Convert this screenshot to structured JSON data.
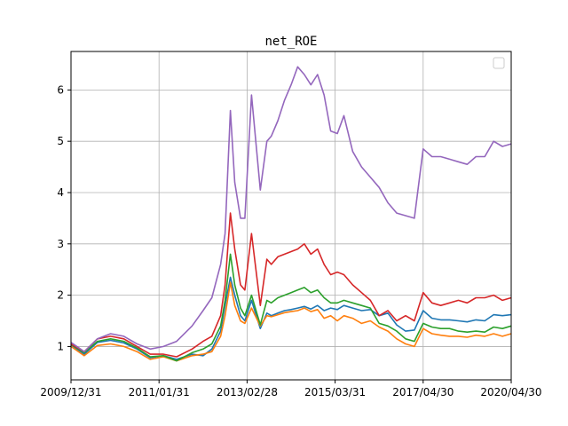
{
  "chart_data": {
    "type": "line",
    "title": "net_ROE",
    "xlabel": "",
    "ylabel": "",
    "grid": true,
    "legend": {
      "position": "top-right",
      "entries": []
    },
    "x_tick_labels": [
      "2009/12/31",
      "2011/01/31",
      "2013/02/28",
      "2015/03/31",
      "2017/04/30",
      "2020/04/30"
    ],
    "y_tick_labels": [
      "1",
      "2",
      "3",
      "4",
      "5",
      "6"
    ],
    "y_ticks": [
      1,
      2,
      3,
      4,
      5,
      6
    ],
    "xlim": [
      0,
      1
    ],
    "ylim": [
      0.35,
      6.75
    ],
    "x": [
      0.0,
      0.03,
      0.06,
      0.09,
      0.12,
      0.15,
      0.18,
      0.21,
      0.24,
      0.275,
      0.3,
      0.32,
      0.34,
      0.35,
      0.362,
      0.372,
      0.385,
      0.395,
      0.41,
      0.43,
      0.445,
      0.455,
      0.47,
      0.485,
      0.5,
      0.515,
      0.53,
      0.545,
      0.56,
      0.575,
      0.59,
      0.605,
      0.62,
      0.64,
      0.66,
      0.68,
      0.7,
      0.72,
      0.74,
      0.76,
      0.78,
      0.8,
      0.82,
      0.84,
      0.86,
      0.88,
      0.9,
      0.92,
      0.94,
      0.96,
      0.98,
      1.0
    ],
    "series": [
      {
        "color": "#1f77b4",
        "values": [
          1.03,
          0.85,
          1.08,
          1.12,
          1.07,
          0.95,
          0.78,
          0.82,
          0.75,
          0.85,
          0.82,
          0.95,
          1.3,
          1.8,
          2.35,
          2.0,
          1.6,
          1.5,
          1.9,
          1.35,
          1.65,
          1.6,
          1.65,
          1.7,
          1.72,
          1.75,
          1.78,
          1.73,
          1.8,
          1.7,
          1.75,
          1.72,
          1.8,
          1.75,
          1.7,
          1.72,
          1.6,
          1.65,
          1.42,
          1.3,
          1.32,
          1.7,
          1.55,
          1.52,
          1.52,
          1.5,
          1.48,
          1.52,
          1.5,
          1.62,
          1.6,
          1.62
        ]
      },
      {
        "color": "#ff7f0e",
        "values": [
          1.0,
          0.82,
          1.02,
          1.05,
          1.0,
          0.9,
          0.75,
          0.8,
          0.72,
          0.82,
          0.85,
          0.9,
          1.2,
          1.6,
          2.25,
          1.8,
          1.5,
          1.45,
          1.75,
          1.4,
          1.6,
          1.58,
          1.62,
          1.66,
          1.68,
          1.7,
          1.75,
          1.68,
          1.72,
          1.55,
          1.6,
          1.5,
          1.6,
          1.55,
          1.45,
          1.5,
          1.38,
          1.3,
          1.15,
          1.05,
          1.0,
          1.35,
          1.25,
          1.22,
          1.2,
          1.2,
          1.18,
          1.22,
          1.2,
          1.25,
          1.2,
          1.25
        ]
      },
      {
        "color": "#2ca02c",
        "values": [
          1.04,
          0.88,
          1.1,
          1.15,
          1.1,
          0.97,
          0.8,
          0.82,
          0.72,
          0.88,
          0.95,
          1.05,
          1.4,
          1.9,
          2.8,
          2.2,
          1.75,
          1.6,
          2.0,
          1.42,
          1.9,
          1.85,
          1.95,
          2.0,
          2.05,
          2.1,
          2.15,
          2.05,
          2.1,
          1.95,
          1.85,
          1.85,
          1.9,
          1.85,
          1.8,
          1.75,
          1.45,
          1.4,
          1.3,
          1.15,
          1.1,
          1.45,
          1.38,
          1.35,
          1.35,
          1.3,
          1.28,
          1.3,
          1.28,
          1.38,
          1.35,
          1.4
        ]
      },
      {
        "color": "#d62728",
        "values": [
          1.05,
          0.9,
          1.15,
          1.2,
          1.15,
          1.0,
          0.85,
          0.85,
          0.8,
          0.95,
          1.1,
          1.2,
          1.6,
          2.2,
          3.6,
          2.9,
          2.2,
          2.1,
          3.2,
          1.8,
          2.7,
          2.6,
          2.75,
          2.8,
          2.85,
          2.9,
          3.0,
          2.8,
          2.9,
          2.6,
          2.4,
          2.45,
          2.4,
          2.2,
          2.05,
          1.9,
          1.6,
          1.7,
          1.5,
          1.6,
          1.5,
          2.05,
          1.85,
          1.8,
          1.85,
          1.9,
          1.85,
          1.95,
          1.95,
          2.0,
          1.9,
          1.95
        ]
      },
      {
        "color": "#9467bd",
        "values": [
          1.08,
          0.9,
          1.15,
          1.25,
          1.2,
          1.05,
          0.95,
          1.0,
          1.1,
          1.4,
          1.7,
          1.95,
          2.6,
          3.2,
          5.6,
          4.2,
          3.5,
          3.5,
          5.9,
          4.05,
          5.0,
          5.1,
          5.4,
          5.8,
          6.1,
          6.45,
          6.3,
          6.1,
          6.3,
          5.9,
          5.2,
          5.15,
          5.5,
          4.8,
          4.5,
          4.3,
          4.1,
          3.8,
          3.6,
          3.55,
          3.5,
          4.85,
          4.7,
          4.7,
          4.65,
          4.6,
          4.55,
          4.7,
          4.7,
          5.0,
          4.9,
          4.95
        ]
      }
    ]
  }
}
